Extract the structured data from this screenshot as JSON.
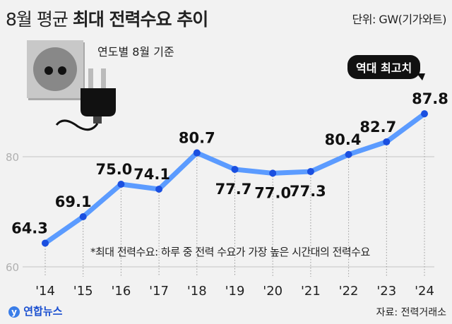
{
  "header": {
    "title_light": "8월 평균",
    "title_bold": "최대 전력수요 추이",
    "unit": "단위: GW(기가와트)",
    "subtitle": "연도별 8월 기준"
  },
  "badge": "역대 최고치",
  "note": "*최대 전력수요: 하루 중 전력 수요가 가장 높은 시간대의 전력수요",
  "source": "자료: 전력거래소",
  "logo": "연합뉴스",
  "colors": {
    "line": "#5b9bff",
    "point": "#1a4fe0"
  },
  "chart_data": {
    "type": "line",
    "title": "8월 평균 최대 전력수요 추이",
    "categories": [
      "'14",
      "'15",
      "'16",
      "'17",
      "'18",
      "'19",
      "'20",
      "'21",
      "'22",
      "'23",
      "'24"
    ],
    "values": [
      64.3,
      69.1,
      75.0,
      74.1,
      80.7,
      77.7,
      77.0,
      77.3,
      80.4,
      82.7,
      87.8
    ],
    "labels": [
      "64.3",
      "69.1",
      "75.0",
      "74.1",
      "80.7",
      "77.7",
      "77.0",
      "77.3",
      "80.4",
      "82.7",
      "87.8"
    ],
    "ylabel": "GW",
    "yticks": [
      "60",
      "80"
    ],
    "ylim": [
      60,
      90
    ],
    "grid": true
  }
}
